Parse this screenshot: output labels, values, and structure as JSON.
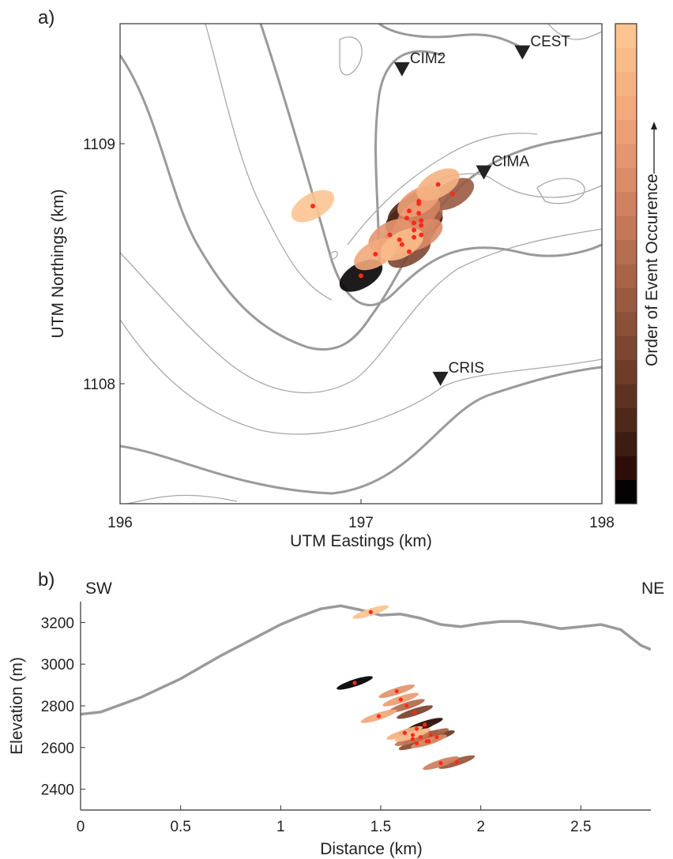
{
  "chart_data": [
    {
      "panel_label": "a)",
      "type": "scatter",
      "xlabel": "UTM Eastings (km)",
      "ylabel": "UTM Northings (km)",
      "xlim": [
        196,
        198
      ],
      "ylim": [
        1107.5,
        1109.5
      ],
      "xticks": [
        "196",
        "197",
        "198"
      ],
      "yticks": [
        "1108",
        "1109"
      ],
      "xtick_values": [
        196,
        197,
        198
      ],
      "ytick_values": [
        1108,
        1109
      ],
      "stations": [
        {
          "name": "CEST",
          "x": 197.67,
          "y": 1109.38
        },
        {
          "name": "CIM2",
          "x": 197.17,
          "y": 1109.31
        },
        {
          "name": "CIMA",
          "x": 197.51,
          "y": 1108.88
        },
        {
          "name": "CRIS",
          "x": 197.33,
          "y": 1108.02
        }
      ],
      "events": [
        {
          "order": 1,
          "x": 197.0,
          "y": 1108.45
        },
        {
          "order": 2,
          "x": 197.25,
          "y": 1108.66
        },
        {
          "order": 3,
          "x": 197.19,
          "y": 1108.69
        },
        {
          "order": 4,
          "x": 197.2,
          "y": 1108.72
        },
        {
          "order": 5,
          "x": 197.22,
          "y": 1108.64
        },
        {
          "order": 6,
          "x": 197.24,
          "y": 1108.75
        },
        {
          "order": 7,
          "x": 197.2,
          "y": 1108.55
        },
        {
          "order": 8,
          "x": 197.22,
          "y": 1108.61
        },
        {
          "order": 9,
          "x": 197.38,
          "y": 1108.79
        },
        {
          "order": 10,
          "x": 197.25,
          "y": 1108.68
        },
        {
          "order": 11,
          "x": 197.16,
          "y": 1108.6
        },
        {
          "order": 12,
          "x": 197.22,
          "y": 1108.67
        },
        {
          "order": 13,
          "x": 197.24,
          "y": 1108.71
        },
        {
          "order": 14,
          "x": 197.25,
          "y": 1108.62
        },
        {
          "order": 15,
          "x": 197.12,
          "y": 1108.62
        },
        {
          "order": 16,
          "x": 197.24,
          "y": 1108.76
        },
        {
          "order": 17,
          "x": 197.06,
          "y": 1108.54
        },
        {
          "order": 18,
          "x": 197.32,
          "y": 1108.83
        },
        {
          "order": 19,
          "x": 197.17,
          "y": 1108.58
        },
        {
          "order": 20,
          "x": 196.8,
          "y": 1108.74
        }
      ],
      "colorbar": {
        "label": "Order of Event Occurence",
        "colors": [
          "#050203",
          "#2e0c08",
          "#3d1c12",
          "#4e2818",
          "#5e3220",
          "#6e3c27",
          "#7d4630",
          "#8b5038",
          "#9a5a40",
          "#a96448",
          "#b66e50",
          "#c47858",
          "#d08260",
          "#d98c67",
          "#e3966f",
          "#ec9f75",
          "#f2a97c",
          "#f6b283",
          "#f9bb8a",
          "#fcc491"
        ]
      }
    },
    {
      "panel_label": "b)",
      "type": "scatter",
      "xlabel": "Distance (km)",
      "ylabel": "Elevation (m)",
      "xlim": [
        0,
        2.85
      ],
      "ylim": [
        2300,
        3300
      ],
      "xticks": [
        "0",
        "0.5",
        "1",
        "1.5",
        "2",
        "2.5"
      ],
      "yticks": [
        "2400",
        "2600",
        "2800",
        "3000",
        "3200"
      ],
      "xtick_values": [
        0,
        0.5,
        1,
        1.5,
        2,
        2.5
      ],
      "ytick_values": [
        2400,
        2600,
        2800,
        3000,
        3200
      ],
      "annotations": {
        "left": "SW",
        "right": "NE"
      },
      "topography": {
        "x": [
          0,
          0.1,
          0.3,
          0.5,
          0.7,
          0.9,
          1.0,
          1.1,
          1.2,
          1.3,
          1.4,
          1.5,
          1.6,
          1.7,
          1.8,
          1.9,
          2.0,
          2.1,
          2.2,
          2.3,
          2.4,
          2.5,
          2.6,
          2.7,
          2.8,
          2.85
        ],
        "y": [
          2760,
          2770,
          2840,
          2930,
          3040,
          3140,
          3190,
          3230,
          3265,
          3280,
          3260,
          3235,
          3240,
          3220,
          3190,
          3180,
          3195,
          3205,
          3205,
          3190,
          3170,
          3180,
          3190,
          3165,
          3090,
          3070
        ]
      },
      "events": [
        {
          "order": 1,
          "x": 1.37,
          "y": 2910
        },
        {
          "order": 2,
          "x": 1.72,
          "y": 2710
        },
        {
          "order": 3,
          "x": 1.68,
          "y": 2690
        },
        {
          "order": 4,
          "x": 1.7,
          "y": 2650
        },
        {
          "order": 5,
          "x": 1.73,
          "y": 2630
        },
        {
          "order": 6,
          "x": 1.78,
          "y": 2650
        },
        {
          "order": 7,
          "x": 1.67,
          "y": 2770
        },
        {
          "order": 8,
          "x": 1.68,
          "y": 2620
        },
        {
          "order": 9,
          "x": 1.88,
          "y": 2530
        },
        {
          "order": 10,
          "x": 1.75,
          "y": 2660
        },
        {
          "order": 11,
          "x": 1.63,
          "y": 2800
        },
        {
          "order": 12,
          "x": 1.66,
          "y": 2640
        },
        {
          "order": 13,
          "x": 1.8,
          "y": 2525
        },
        {
          "order": 14,
          "x": 1.74,
          "y": 2630
        },
        {
          "order": 15,
          "x": 1.58,
          "y": 2870
        },
        {
          "order": 16,
          "x": 1.6,
          "y": 2830
        },
        {
          "order": 17,
          "x": 1.49,
          "y": 2750
        },
        {
          "order": 18,
          "x": 1.62,
          "y": 2670
        },
        {
          "order": 19,
          "x": 1.66,
          "y": 2660
        },
        {
          "order": 20,
          "x": 1.45,
          "y": 3250
        }
      ]
    }
  ]
}
